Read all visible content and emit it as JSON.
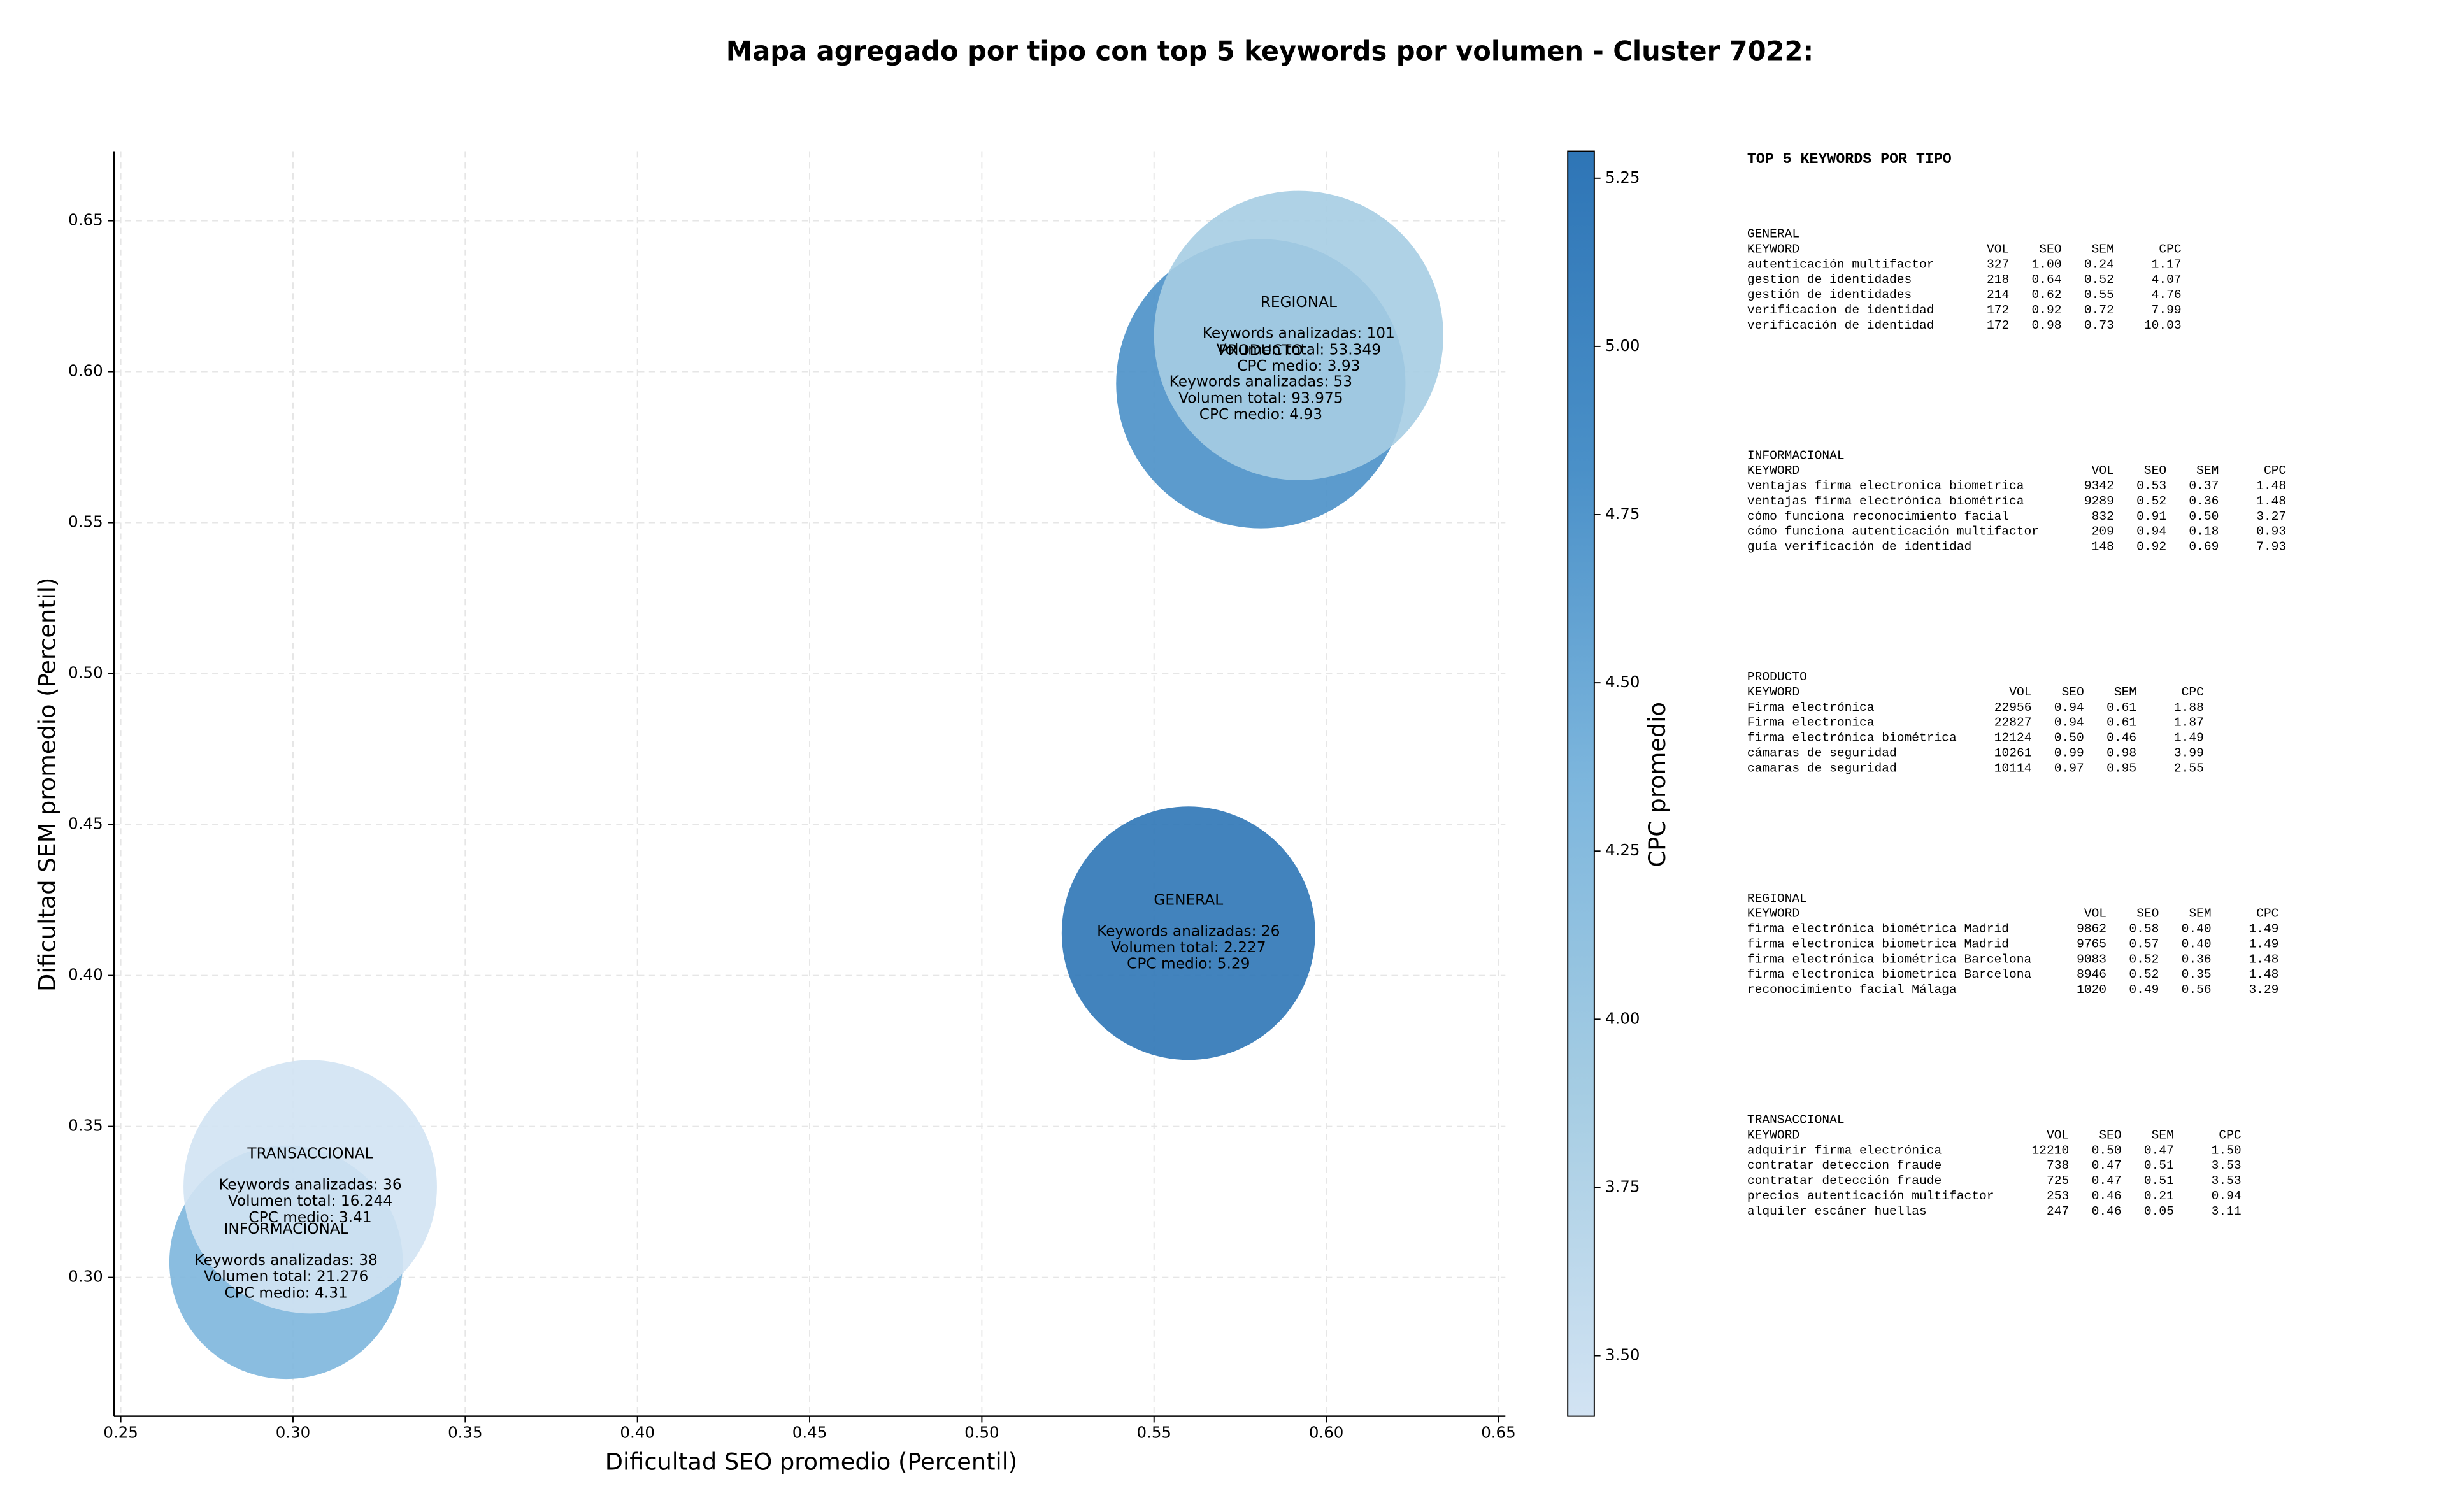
{
  "chart_data": {
    "type": "scatter",
    "title": "Mapa agregado por tipo con top 5 keywords por volumen - Cluster 7022:",
    "x_label": "Dificultad SEO promedio (Percentil)",
    "y_label": "Dificultad SEM promedio (Percentil)",
    "xlim": [
      0.248,
      0.652
    ],
    "ylim": [
      0.254,
      0.673
    ],
    "xticks": [
      0.25,
      {
        "value": 0.3,
        "label": "0.30"
      },
      0.35,
      {
        "value": 0.4,
        "label": "0.40"
      },
      0.45,
      {
        "value": 0.5,
        "label": "0.50"
      },
      0.55,
      {
        "value": 0.6,
        "label": "0.60"
      },
      0.65
    ],
    "yticks": [
      {
        "value": 0.3,
        "label": "0.30"
      },
      0.35,
      {
        "value": 0.4,
        "label": "0.40"
      },
      0.45,
      {
        "value": 0.5,
        "label": "0.50"
      },
      0.55,
      {
        "value": 0.6,
        "label": "0.60"
      },
      0.65
    ],
    "grid": true,
    "opacity": 0.9,
    "series": [
      {
        "name": "GENERAL",
        "color": "#2e75b6",
        "x": [
          0.56
        ],
        "values": [
          0.414
        ],
        "sizes": [
          6600
        ],
        "cpc": [
          5.29
        ],
        "labels": [
          "Keywords analizadas: 26",
          "Volumen total: 2.227",
          "CPC medio: 5.29"
        ]
      },
      {
        "name": "INFORMACIONAL",
        "color": "#7db6dd",
        "x": [
          0.298
        ],
        "values": [
          0.305
        ],
        "sizes": [
          5600
        ],
        "cpc": [
          4.31
        ],
        "labels": [
          "Keywords analizadas: 38",
          "Volumen total: 21.276",
          "CPC medio: 4.31"
        ]
      },
      {
        "name": "PRODUCTO",
        "color": "#4a90c8",
        "x": [
          0.581
        ],
        "values": [
          0.596
        ],
        "sizes": [
          8600
        ],
        "cpc": [
          4.93
        ],
        "labels": [
          "Keywords analizadas: 53",
          "Volumen total: 93.975",
          "CPC medio: 4.93"
        ]
      },
      {
        "name": "REGIONAL",
        "color": "#a6cde3",
        "x": [
          0.592
        ],
        "values": [
          0.612
        ],
        "sizes": [
          8600
        ],
        "cpc": [
          3.93
        ],
        "labels": [
          "Keywords analizadas: 101",
          "Volumen total: 53.349",
          "CPC medio: 3.93"
        ]
      },
      {
        "name": "TRANSACCIONAL",
        "color": "#d2e3f3",
        "x": [
          0.305
        ],
        "values": [
          0.33
        ],
        "sizes": [
          6600
        ],
        "cpc": [
          3.41
        ],
        "labels": [
          "Keywords analizadas: 36",
          "Volumen total: 16.244",
          "CPC medio: 3.41"
        ]
      }
    ],
    "colorbar": {
      "label": "CPC promedio",
      "lim": [
        3.41,
        5.29
      ],
      "ticks": [
        {
          "value": 3.5,
          "label": "3.50"
        },
        3.75,
        {
          "value": 4,
          "label": "4.00"
        },
        4.25,
        {
          "value": 4.5,
          "label": "4.50"
        },
        4.75,
        {
          "value": 5,
          "label": "5.00"
        },
        5.25
      ],
      "colors": [
        "#d2e3f3",
        "#a6cde3",
        "#7db6dd",
        "#4a90c8",
        "#2e75b6"
      ]
    }
  },
  "keywords_panel": {
    "title": "TOP 5 KEYWORDS POR TIPO",
    "groups": [
      {
        "type": "GENERAL",
        "header": [
          "KEYWORD",
          "VOL",
          "SEO",
          "SEM",
          "CPC"
        ],
        "rows": [
          [
            "autenticación multifactor",
            "327",
            "1.00",
            "0.24",
            "1.17"
          ],
          [
            "gestion de identidades",
            "218",
            "0.64",
            "0.52",
            "4.07"
          ],
          [
            "gestión de identidades",
            "214",
            "0.62",
            "0.55",
            "4.76"
          ],
          [
            "verificacion de identidad",
            "172",
            "0.92",
            "0.72",
            "7.99"
          ],
          [
            "verificación de identidad",
            "172",
            "0.98",
            "0.73",
            "10.03"
          ]
        ]
      },
      {
        "type": "INFORMACIONAL",
        "header": [
          "KEYWORD",
          "VOL",
          "SEO",
          "SEM",
          "CPC"
        ],
        "rows": [
          [
            "ventajas firma electronica biometrica",
            "9342",
            "0.53",
            "0.37",
            "1.48"
          ],
          [
            "ventajas firma electrónica biométrica",
            "9289",
            "0.52",
            "0.36",
            "1.48"
          ],
          [
            "cómo funciona reconocimiento facial",
            "832",
            "0.91",
            "0.50",
            "3.27"
          ],
          [
            "cómo funciona autenticación multifactor",
            "209",
            "0.94",
            "0.18",
            "0.93"
          ],
          [
            "guía verificación de identidad",
            "148",
            "0.92",
            "0.69",
            "7.93"
          ]
        ]
      },
      {
        "type": "PRODUCTO",
        "header": [
          "KEYWORD",
          "VOL",
          "SEO",
          "SEM",
          "CPC"
        ],
        "rows": [
          [
            "Firma electrónica",
            "22956",
            "0.94",
            "0.61",
            "1.88"
          ],
          [
            "Firma electronica",
            "22827",
            "0.94",
            "0.61",
            "1.87"
          ],
          [
            "firma electrónica biométrica",
            "12124",
            "0.50",
            "0.46",
            "1.49"
          ],
          [
            "cámaras de seguridad",
            "10261",
            "0.99",
            "0.98",
            "3.99"
          ],
          [
            "camaras de seguridad",
            "10114",
            "0.97",
            "0.95",
            "2.55"
          ]
        ]
      },
      {
        "type": "REGIONAL",
        "header": [
          "KEYWORD",
          "VOL",
          "SEO",
          "SEM",
          "CPC"
        ],
        "rows": [
          [
            "firma electrónica biométrica Madrid",
            "9862",
            "0.58",
            "0.40",
            "1.49"
          ],
          [
            "firma electronica biometrica Madrid",
            "9765",
            "0.57",
            "0.40",
            "1.49"
          ],
          [
            "firma electrónica biométrica Barcelona",
            "9083",
            "0.52",
            "0.36",
            "1.48"
          ],
          [
            "firma electronica biometrica Barcelona",
            "8946",
            "0.52",
            "0.35",
            "1.48"
          ],
          [
            "reconocimiento facial Málaga",
            "1020",
            "0.49",
            "0.56",
            "3.29"
          ]
        ]
      },
      {
        "type": "TRANSACCIONAL",
        "header": [
          "KEYWORD",
          "VOL",
          "SEO",
          "SEM",
          "CPC"
        ],
        "rows": [
          [
            "adquirir firma electrónica",
            "12210",
            "0.50",
            "0.47",
            "1.50"
          ],
          [
            "contratar deteccion fraude",
            "738",
            "0.47",
            "0.51",
            "3.53"
          ],
          [
            "contratar detección fraude",
            "725",
            "0.47",
            "0.51",
            "3.53"
          ],
          [
            "precios autenticación multifactor",
            "253",
            "0.46",
            "0.21",
            "0.94"
          ],
          [
            "alquiler escáner huellas",
            "247",
            "0.46",
            "0.05",
            "3.11"
          ]
        ]
      }
    ]
  }
}
